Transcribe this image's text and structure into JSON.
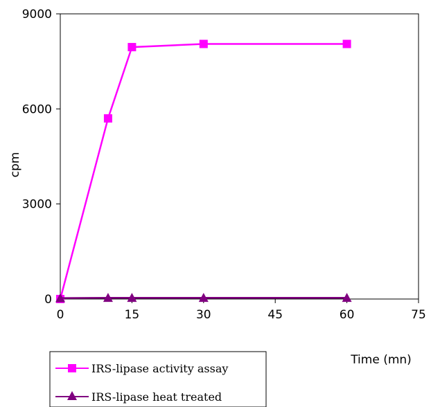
{
  "chart_data": {
    "type": "line",
    "xlabel": "Time (mn)",
    "ylabel": "cpm",
    "xlim": [
      0,
      75
    ],
    "ylim": [
      0,
      9000
    ],
    "x_ticks": [
      "0",
      "15",
      "30",
      "45",
      "60",
      "75"
    ],
    "y_ticks": [
      "0",
      "3000",
      "6000",
      "9000"
    ],
    "grid": false,
    "legend_position": "bottom-left",
    "series": [
      {
        "name": "IRS-lipase activity assay",
        "color": "#ff00ff",
        "marker": "square",
        "x": [
          0,
          10,
          15,
          30,
          60
        ],
        "y": [
          0,
          5700,
          7950,
          8050,
          8050
        ]
      },
      {
        "name": "IRS-lipase heat treated",
        "color": "#800080",
        "marker": "triangle",
        "x": [
          0,
          10,
          15,
          30,
          60
        ],
        "y": [
          30,
          40,
          40,
          40,
          40
        ]
      }
    ]
  }
}
